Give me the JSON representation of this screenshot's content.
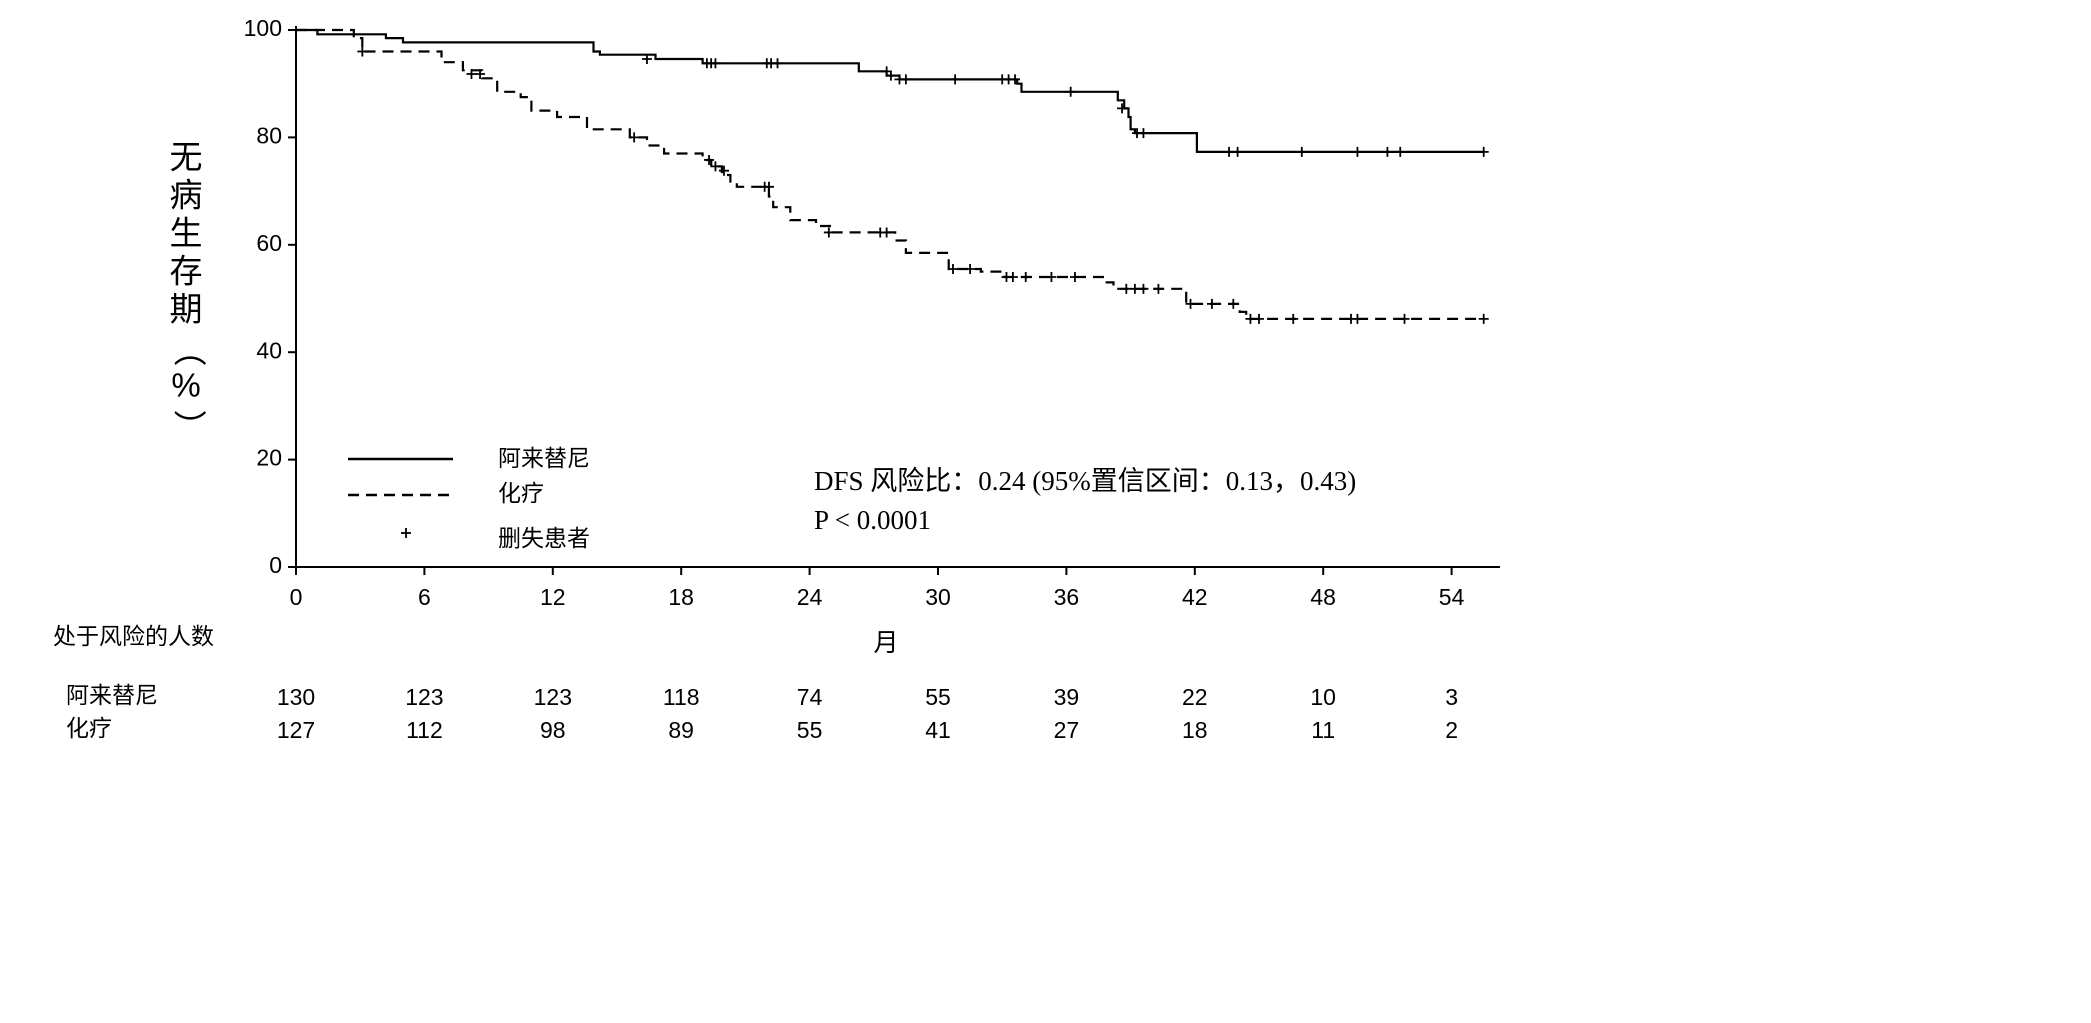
{
  "chart_data": {
    "type": "line",
    "subtype": "kaplan-meier",
    "ylabel": "无病生存期（%）",
    "xlabel": "月",
    "xlim": [
      0,
      56.5
    ],
    "ylim": [
      0,
      100
    ],
    "xticks": [
      0,
      6,
      12,
      18,
      24,
      30,
      36,
      42,
      48,
      54
    ],
    "yticks": [
      0,
      20,
      40,
      60,
      80,
      100
    ],
    "grid": false,
    "legend": {
      "placement": "bottom-left",
      "entries": [
        {
          "label": "阿来替尼",
          "style": "solid"
        },
        {
          "label": "化疗",
          "style": "dashed"
        },
        {
          "label": "删失患者",
          "style": "censor-mark"
        }
      ]
    },
    "annotations": [
      "DFS 风险比：0.24 (95%置信区间：0.13，0.43)",
      "P < 0.0001"
    ],
    "series": [
      {
        "name": "阿来替尼",
        "style": "solid",
        "steps": [
          [
            0,
            100
          ],
          [
            1.0,
            99.2
          ],
          [
            4.2,
            98.5
          ],
          [
            5.0,
            97.7
          ],
          [
            13.9,
            96.0
          ],
          [
            14.2,
            95.4
          ],
          [
            16.8,
            94.6
          ],
          [
            19.0,
            93.8
          ],
          [
            26.3,
            92.3
          ],
          [
            27.6,
            91.5
          ],
          [
            28.2,
            90.8
          ],
          [
            33.7,
            90.0
          ],
          [
            33.9,
            88.5
          ],
          [
            38.4,
            86.9
          ],
          [
            38.7,
            85.4
          ],
          [
            38.9,
            83.8
          ],
          [
            39.0,
            81.5
          ],
          [
            39.2,
            80.8
          ],
          [
            42.1,
            77.3
          ],
          [
            55.5,
            77.3
          ]
        ],
        "censored": [
          [
            16.4,
            94.6
          ],
          [
            19.2,
            93.8
          ],
          [
            19.4,
            93.8
          ],
          [
            19.6,
            93.8
          ],
          [
            22.0,
            93.8
          ],
          [
            22.2,
            93.8
          ],
          [
            22.5,
            93.8
          ],
          [
            27.6,
            92.3
          ],
          [
            27.8,
            91.5
          ],
          [
            28.2,
            90.8
          ],
          [
            28.5,
            90.8
          ],
          [
            30.8,
            90.8
          ],
          [
            33.0,
            90.8
          ],
          [
            33.3,
            90.8
          ],
          [
            33.6,
            90.8
          ],
          [
            36.2,
            88.5
          ],
          [
            38.6,
            85.4
          ],
          [
            39.3,
            80.8
          ],
          [
            39.6,
            80.8
          ],
          [
            43.6,
            77.3
          ],
          [
            44.0,
            77.3
          ],
          [
            47.0,
            77.3
          ],
          [
            49.6,
            77.3
          ],
          [
            51.0,
            77.3
          ],
          [
            51.6,
            77.3
          ],
          [
            55.5,
            77.3
          ]
        ]
      },
      {
        "name": "化疗",
        "style": "dashed",
        "steps": [
          [
            0,
            100
          ],
          [
            2.7,
            98.5
          ],
          [
            3.1,
            96.0
          ],
          [
            6.8,
            94.0
          ],
          [
            7.8,
            92.5
          ],
          [
            8.7,
            91.0
          ],
          [
            9.4,
            88.5
          ],
          [
            10.5,
            87.5
          ],
          [
            11.0,
            85.0
          ],
          [
            12.2,
            83.8
          ],
          [
            13.6,
            81.5
          ],
          [
            15.6,
            80.0
          ],
          [
            16.4,
            78.5
          ],
          [
            17.2,
            77.0
          ],
          [
            19.0,
            75.8
          ],
          [
            19.4,
            74.6
          ],
          [
            19.9,
            73.0
          ],
          [
            20.3,
            71.5
          ],
          [
            20.6,
            70.8
          ],
          [
            22.1,
            69.0
          ],
          [
            22.3,
            67.0
          ],
          [
            23.1,
            64.6
          ],
          [
            24.3,
            63.5
          ],
          [
            25.0,
            62.3
          ],
          [
            28.0,
            60.8
          ],
          [
            28.5,
            58.5
          ],
          [
            30.5,
            55.5
          ],
          [
            32.0,
            55.0
          ],
          [
            33.1,
            54.0
          ],
          [
            37.8,
            53.0
          ],
          [
            38.2,
            51.8
          ],
          [
            41.6,
            49.0
          ],
          [
            44.1,
            47.5
          ],
          [
            44.4,
            46.2
          ],
          [
            55.5,
            46.2
          ]
        ],
        "censored": [
          [
            3.1,
            96.0
          ],
          [
            8.2,
            91.8
          ],
          [
            8.6,
            91.8
          ],
          [
            15.8,
            80.0
          ],
          [
            19.3,
            75.8
          ],
          [
            19.6,
            74.6
          ],
          [
            20.0,
            73.8
          ],
          [
            21.9,
            70.8
          ],
          [
            22.1,
            70.8
          ],
          [
            24.9,
            62.3
          ],
          [
            27.3,
            62.3
          ],
          [
            27.6,
            62.3
          ],
          [
            30.7,
            55.5
          ],
          [
            31.5,
            55.5
          ],
          [
            33.2,
            54.0
          ],
          [
            33.5,
            54.0
          ],
          [
            34.1,
            54.0
          ],
          [
            35.3,
            54.0
          ],
          [
            36.4,
            54.0
          ],
          [
            38.8,
            51.8
          ],
          [
            39.2,
            51.8
          ],
          [
            39.6,
            51.8
          ],
          [
            40.3,
            51.8
          ],
          [
            41.8,
            49.0
          ],
          [
            42.8,
            49.0
          ],
          [
            43.8,
            49.0
          ],
          [
            44.6,
            46.2
          ],
          [
            45.0,
            46.2
          ],
          [
            46.6,
            46.2
          ],
          [
            49.3,
            46.2
          ],
          [
            49.6,
            46.2
          ],
          [
            51.8,
            46.2
          ],
          [
            55.5,
            46.2
          ]
        ]
      }
    ]
  },
  "risk_table": {
    "title": "处于风险的人数",
    "rows": [
      {
        "label": "阿来替尼",
        "values": [
          "130",
          "123",
          "123",
          "118",
          "74",
          "55",
          "39",
          "22",
          "10",
          "3"
        ]
      },
      {
        "label": "化疗",
        "values": [
          "127",
          "112",
          "98",
          "89",
          "55",
          "41",
          "27",
          "18",
          "11",
          "2"
        ]
      }
    ]
  }
}
